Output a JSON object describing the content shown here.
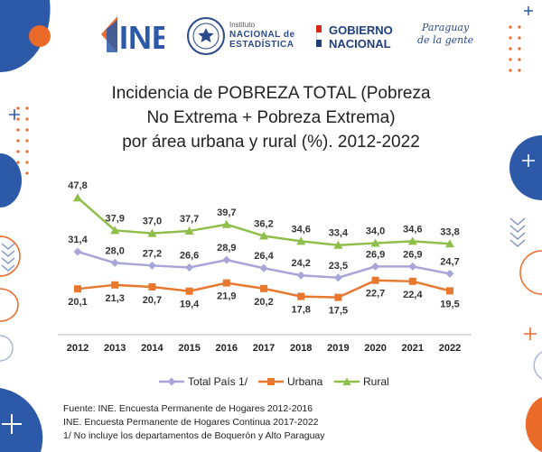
{
  "header": {
    "ine_logo": "INE",
    "institute_lines": [
      "Instituto",
      "NACIONAL de",
      "ESTADÍSTICA"
    ],
    "gobierno_lines": [
      "GOBIERNO",
      "NACIONAL"
    ],
    "paraguay_lines": [
      "Paraguay",
      "de la gente"
    ],
    "colors": {
      "brand_blue": "#2d5aa8",
      "brand_orange": "#ea6a2a",
      "gob_red": "#d52b1e",
      "gob_blue": "#1f3f7d"
    }
  },
  "chart_data": {
    "type": "line",
    "title": "Incidencia de POBREZA TOTAL (Pobreza No Extrema + Pobreza Extrema) por área urbana y rural (%). 2012-2022",
    "title_lines": [
      "Incidencia de POBREZA TOTAL (Pobreza",
      "No Extrema + Pobreza Extrema)",
      "por área urbana y rural (%). 2012-2022"
    ],
    "x": [
      "2012",
      "2013",
      "2014",
      "2015",
      "2016",
      "2017",
      "2018",
      "2019",
      "2020",
      "2021",
      "2022"
    ],
    "xlabel": "",
    "ylabel": "",
    "ylim": [
      10,
      55
    ],
    "grid": false,
    "legend_position": "bottom",
    "series": [
      {
        "name": "Total País 1/",
        "color": "#a8a6d8",
        "marker": "diamond",
        "label_position": "above",
        "values": [
          31.4,
          28.0,
          27.2,
          26.6,
          28.9,
          26.4,
          24.2,
          23.5,
          26.9,
          26.9,
          24.7
        ],
        "labels": [
          "31,4",
          "28,0",
          "27,2",
          "26,6",
          "28,9",
          "26,4",
          "24,2",
          "23,5",
          "26,9",
          "26,9",
          "24,7"
        ]
      },
      {
        "name": "Urbana",
        "color": "#e8782e",
        "marker": "square",
        "label_position": "below",
        "values": [
          20.1,
          21.3,
          20.7,
          19.4,
          21.9,
          20.2,
          17.8,
          17.5,
          22.7,
          22.4,
          19.5
        ],
        "labels": [
          "20,1",
          "21,3",
          "20,7",
          "19,4",
          "21,9",
          "20,2",
          "17,8",
          "17,5",
          "22,7",
          "22,4",
          "19,5"
        ]
      },
      {
        "name": "Rural",
        "color": "#8fbe4b",
        "marker": "triangle",
        "label_position": "above",
        "values": [
          47.8,
          37.9,
          37.0,
          37.7,
          39.7,
          36.2,
          34.6,
          33.4,
          34.0,
          34.6,
          33.8
        ],
        "labels": [
          "47,8",
          "37,9",
          "37,0",
          "37,7",
          "39,7",
          "36,2",
          "34,6",
          "33,4",
          "34,0",
          "34,6",
          "33,8"
        ]
      }
    ]
  },
  "footnotes": [
    "Fuente: INE. Encuesta Permanente de Hogares 2012-2016",
    "INE. Encuesta Permanente de Hogares Continua 2017-2022",
    "1/ No incluye los departamentos de Boquerón y Alto Paraguay"
  ]
}
